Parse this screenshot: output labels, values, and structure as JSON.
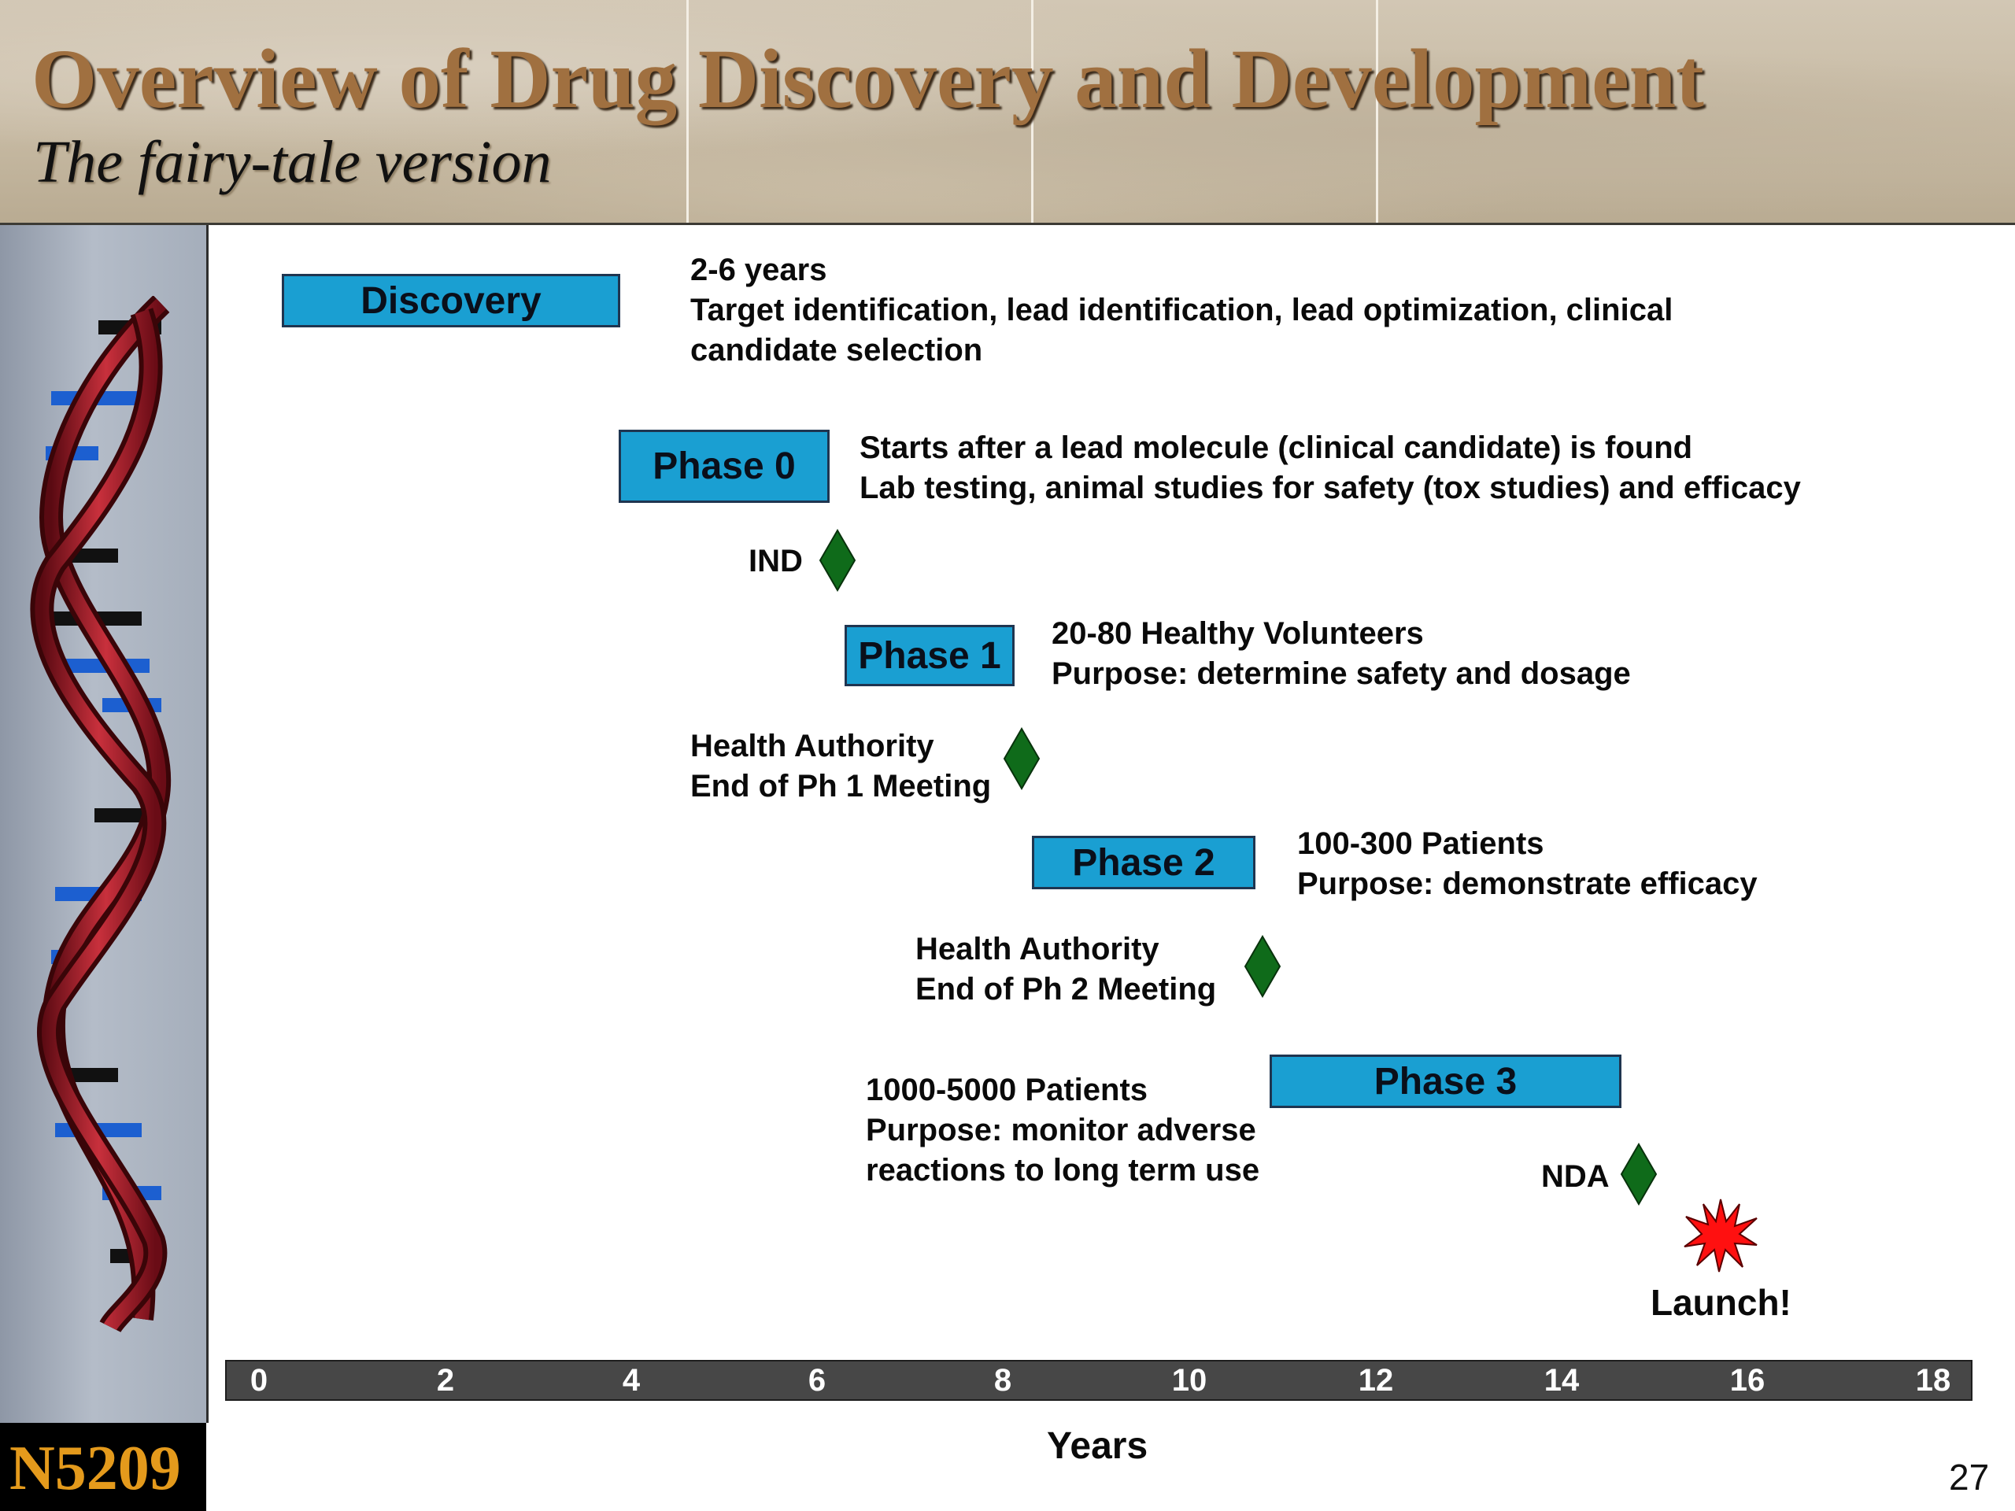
{
  "slide": {
    "title": "Overview of Drug Discovery and Development",
    "subtitle": "The fairy-tale version",
    "course_code": "N5209",
    "page_number": "27"
  },
  "colors": {
    "bar_fill": "#1a9fd2",
    "milestone": "#0f6b1a",
    "launch_star": "#ff1010",
    "title": "#a07040",
    "course_code": "#e49a1c"
  },
  "phases": [
    {
      "label": "Discovery",
      "lines": [
        "2-6 years",
        "Target identification, lead identification, lead optimization, clinical",
        "candidate selection"
      ]
    },
    {
      "label": "Phase 0",
      "lines": [
        "Starts after a lead molecule (clinical candidate) is found",
        "Lab testing, animal studies for safety (tox studies) and efficacy"
      ]
    },
    {
      "label": "Phase 1",
      "lines": [
        "20-80 Healthy Volunteers",
        "Purpose: determine safety and dosage"
      ]
    },
    {
      "label": "Phase 2",
      "lines": [
        "100-300 Patients",
        "Purpose: demonstrate efficacy"
      ]
    },
    {
      "label": "Phase 3",
      "lines": [
        "1000-5000 Patients",
        "Purpose: monitor adverse",
        "reactions to long term use"
      ]
    }
  ],
  "milestones": [
    {
      "lines": [
        "IND"
      ],
      "icon": "diamond-icon"
    },
    {
      "lines": [
        "Health Authority",
        "End of Ph 1 Meeting"
      ],
      "icon": "diamond-icon"
    },
    {
      "lines": [
        "Health Authority",
        "End of Ph 2 Meeting"
      ],
      "icon": "diamond-icon"
    },
    {
      "lines": [
        "NDA"
      ],
      "icon": "diamond-icon"
    }
  ],
  "launch": {
    "label": "Launch!",
    "icon": "burst-star-icon"
  },
  "axis": {
    "ticks": [
      "0",
      "2",
      "4",
      "6",
      "8",
      "10",
      "12",
      "14",
      "16",
      "18"
    ],
    "label": "Years"
  }
}
